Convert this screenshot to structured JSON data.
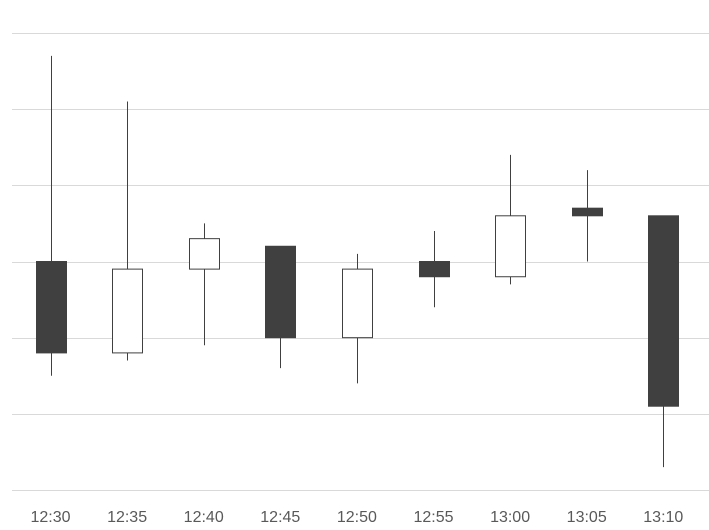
{
  "chart_data": {
    "type": "candlestick",
    "title": "",
    "xlabel": "",
    "ylabel": "",
    "categories": [
      "12:30",
      "12:35",
      "12:40",
      "12:45",
      "12:50",
      "12:55",
      "13:00",
      "13:05",
      "13:10"
    ],
    "ohlc": [
      {
        "open": 3.0,
        "high": 5.7,
        "low": 1.5,
        "close": 1.8
      },
      {
        "open": 1.8,
        "high": 5.1,
        "low": 1.7,
        "close": 2.9
      },
      {
        "open": 2.9,
        "high": 3.5,
        "low": 1.9,
        "close": 3.3
      },
      {
        "open": 3.2,
        "high": 3.2,
        "low": 1.6,
        "close": 2.0
      },
      {
        "open": 2.0,
        "high": 3.1,
        "low": 1.4,
        "close": 2.9
      },
      {
        "open": 3.0,
        "high": 3.4,
        "low": 2.4,
        "close": 2.8
      },
      {
        "open": 2.8,
        "high": 4.4,
        "low": 2.7,
        "close": 3.6
      },
      {
        "open": 3.7,
        "high": 4.2,
        "low": 3.0,
        "close": 3.6
      },
      {
        "open": 3.6,
        "high": 3.6,
        "low": 0.3,
        "close": 1.1
      }
    ],
    "ylim": [
      0,
      6
    ],
    "y_gridlines": [
      0,
      1,
      2,
      3,
      4,
      5,
      6
    ],
    "grid": true,
    "y_tick_labels_shown": false,
    "legend": "none",
    "colors": {
      "bearish_fill": "#404040",
      "bullish_fill": "#ffffff",
      "outline": "#404040",
      "grid": "#d9d9d9",
      "tick_text": "#595959"
    }
  }
}
